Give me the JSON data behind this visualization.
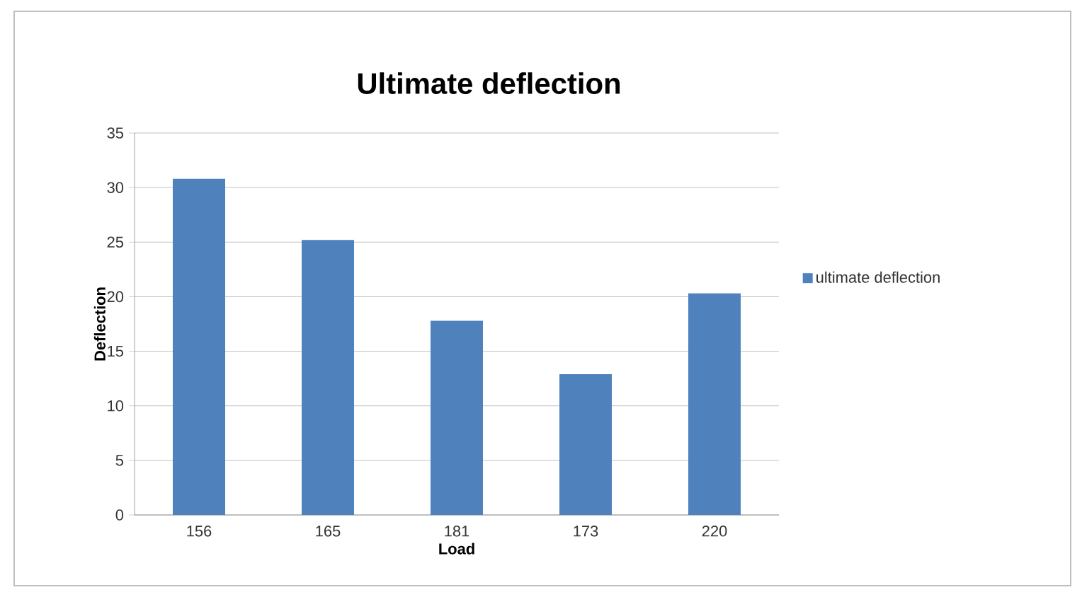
{
  "chart_data": {
    "type": "bar",
    "title": "Ultimate deflection",
    "xlabel": "Load",
    "ylabel": "Deflection",
    "categories": [
      "156",
      "165",
      "181",
      "173",
      "220"
    ],
    "series": [
      {
        "name": "ultimate deflection",
        "color": "#4f81bd",
        "values": [
          30.8,
          25.2,
          17.8,
          12.9,
          20.3
        ]
      }
    ],
    "ylim": [
      0,
      35
    ],
    "yticks": [
      0,
      5,
      10,
      15,
      20,
      25,
      30,
      35
    ],
    "grid": "y",
    "legend": "right"
  }
}
